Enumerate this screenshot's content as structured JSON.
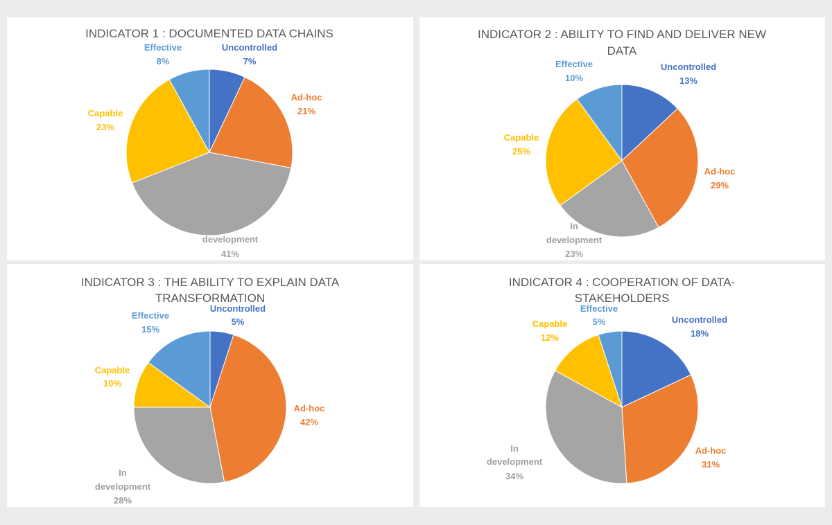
{
  "colors": {
    "Uncontrolled": "#4472c4",
    "Ad-hoc": "#ed7d31",
    "In development": "#a5a5a5",
    "Capable": "#ffc000",
    "Effective": "#5b9bd5",
    "background": "#ececec",
    "panel": "#ffffff"
  },
  "chart_data": [
    {
      "type": "pie",
      "title_lines": [
        "INDICATOR 1 : DOCUMENTED DATA CHAINS"
      ],
      "categories": [
        "Uncontrolled",
        "Ad-hoc",
        "In development",
        "Capable",
        "Effective"
      ],
      "values": [
        7,
        21,
        41,
        23,
        8
      ],
      "value_labels": [
        "7%",
        "21%",
        "41%",
        "23%",
        "8%"
      ],
      "legend": "none"
    },
    {
      "type": "pie",
      "title_lines": [
        "INDICATOR 2 : ABILITY TO FIND AND DELIVER NEW",
        "DATA"
      ],
      "categories": [
        "Uncontrolled",
        "Ad-hoc",
        "In development",
        "Capable",
        "Effective"
      ],
      "values": [
        13,
        29,
        23,
        25,
        10
      ],
      "value_labels": [
        "13%",
        "29%",
        "23%",
        "25%",
        "10%"
      ],
      "legend": "none"
    },
    {
      "type": "pie",
      "title_lines": [
        "INDICATOR 3 : THE ABILITY TO EXPLAIN DATA",
        "TRANSFORMATION"
      ],
      "categories": [
        "Uncontrolled",
        "Ad-hoc",
        "In development",
        "Capable",
        "Effective"
      ],
      "values": [
        5,
        42,
        28,
        10,
        15
      ],
      "value_labels": [
        "5%",
        "42%",
        "28%",
        "10%",
        "15%"
      ],
      "legend": "none"
    },
    {
      "type": "pie",
      "title_lines": [
        "INDICATOR 4 : COOPERATION OF DATA-",
        "STAKEHOLDERS"
      ],
      "categories": [
        "Uncontrolled",
        "Ad-hoc",
        "In development",
        "Capable",
        "Effective"
      ],
      "values": [
        18,
        31,
        34,
        12,
        5
      ],
      "value_labels": [
        "18%",
        "31%",
        "34%",
        "12%",
        "5%"
      ],
      "legend": "none"
    }
  ]
}
